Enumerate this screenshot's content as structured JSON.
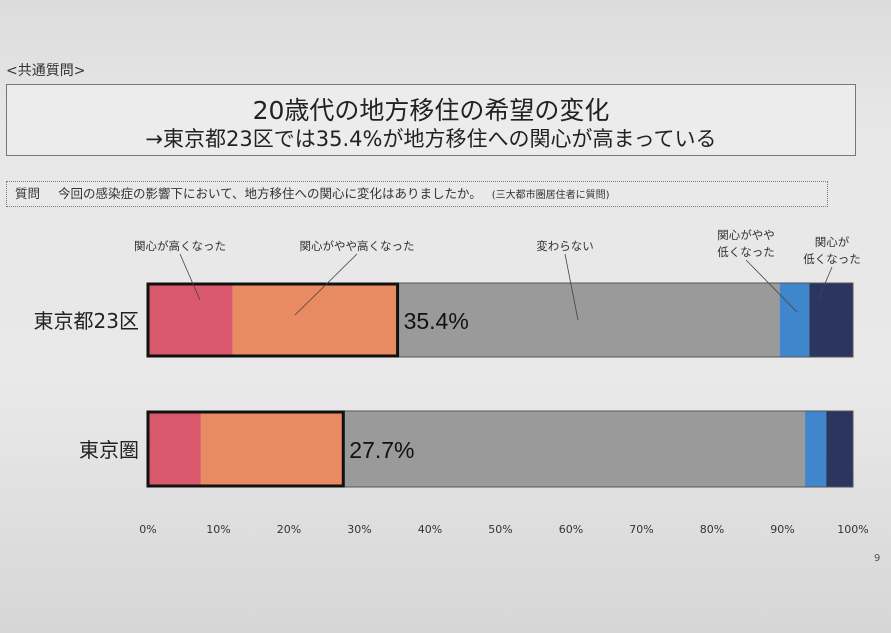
{
  "section_label": "<共通質問>",
  "title": {
    "line1": "20歳代の地方移住の希望の変化",
    "line2": "→東京都23区では35.4%が地方移住への関心が高まっている"
  },
  "question": {
    "label": "質問",
    "text": "今回の感染症の影響下において、地方移住への関心に変化はありましたか。",
    "note": "(三大都市圏居住者に質問)"
  },
  "page_number": "9",
  "colors": {
    "much_higher": "#d9586b",
    "somewhat_higher": "#e88a62",
    "unchanged": "#9a9a9a",
    "somewhat_lower": "#3f86cc",
    "much_lower": "#2c3560"
  },
  "chart_data": {
    "type": "bar",
    "orientation": "horizontal",
    "stacked": true,
    "categories": [
      "東京都23区",
      "東京圏"
    ],
    "series": [
      {
        "name": "関心が高くなった",
        "values": [
          12.0,
          7.5
        ]
      },
      {
        "name": "関心がやや高くなった",
        "values": [
          23.4,
          20.2
        ]
      },
      {
        "name": "変わらない",
        "values": [
          54.2,
          65.5
        ]
      },
      {
        "name": "関心がやや低くなった",
        "values": [
          4.2,
          3.0
        ]
      },
      {
        "name": "関心が低くなった",
        "values": [
          6.2,
          3.8
        ]
      }
    ],
    "legend_labels": [
      "関心が高くなった",
      "関心がやや高くなった",
      "変わらない",
      "関心がやや\n低くなった",
      "関心が\n低くなった"
    ],
    "annotations": [
      "35.4%",
      "27.7%"
    ],
    "x_ticks": [
      "0%",
      "10%",
      "20%",
      "30%",
      "40%",
      "50%",
      "60%",
      "70%",
      "80%",
      "90%",
      "100%"
    ],
    "xlim": [
      0,
      100
    ],
    "grid": false,
    "legend_position": "top"
  }
}
